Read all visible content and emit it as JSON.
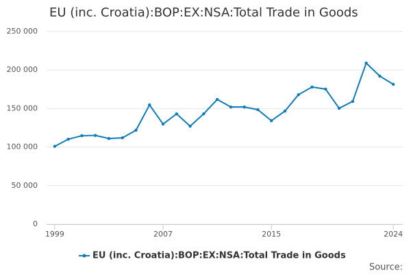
{
  "chart_data": {
    "type": "line",
    "title": "EU (inc. Croatia):BOP:EX:NSA:Total Trade in Goods",
    "x": [
      1999,
      2000,
      2001,
      2002,
      2003,
      2004,
      2005,
      2006,
      2007,
      2008,
      2009,
      2010,
      2011,
      2012,
      2013,
      2014,
      2015,
      2016,
      2017,
      2018,
      2019,
      2020,
      2021,
      2022,
      2023,
      2024
    ],
    "series": [
      {
        "name": "EU (inc. Croatia):BOP:EX:NSA:Total Trade in Goods",
        "color": "#0f7cb8",
        "values": [
          101000,
          110300,
          114800,
          115200,
          111200,
          112100,
          121900,
          154800,
          129900,
          143200,
          127200,
          143200,
          161900,
          152100,
          152100,
          148600,
          134300,
          146800,
          168100,
          178000,
          175300,
          150400,
          159300,
          209100,
          192200,
          181500
        ]
      }
    ],
    "xlim": [
      1998.4,
      2024.7
    ],
    "xticks": [
      1999,
      2007,
      2015,
      2024
    ],
    "ylim": [
      0,
      250000
    ],
    "yticks": [
      0,
      {
        "value": 50000,
        "label": "50 000"
      },
      {
        "value": 100000,
        "label": "100 000"
      },
      {
        "value": 150000,
        "label": "150 000"
      },
      {
        "value": 200000,
        "label": "200 000"
      },
      {
        "value": 250000,
        "label": "250 000"
      }
    ],
    "grid": true,
    "legend": "bottom",
    "source": "Source:"
  }
}
